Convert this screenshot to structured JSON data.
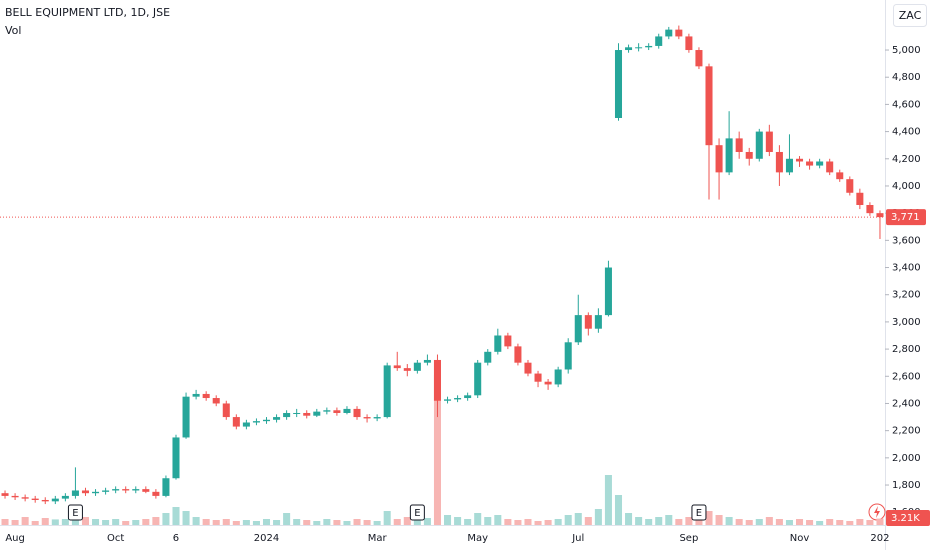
{
  "chart_data": {
    "type": "candlestick",
    "title": "BELL EQUIPMENT LTD, 1D, JSE",
    "volume_label": "Vol",
    "currency": "ZAC",
    "events": [
      "E",
      "E",
      "E"
    ],
    "categories": [
      null,
      "Aug",
      null,
      null,
      null,
      null,
      null,
      null,
      null,
      null,
      null,
      "Oct",
      null,
      null,
      null,
      null,
      null,
      "6",
      null,
      null,
      null,
      null,
      null,
      null,
      null,
      null,
      "2024",
      null,
      null,
      null,
      null,
      null,
      null,
      null,
      null,
      null,
      null,
      "Mar",
      null,
      null,
      null,
      null,
      null,
      null,
      null,
      null,
      null,
      "May",
      null,
      null,
      null,
      null,
      null,
      null,
      null,
      null,
      null,
      "Jul",
      null,
      null,
      null,
      null,
      null,
      null,
      null,
      null,
      null,
      null,
      "Sep",
      null,
      null,
      null,
      null,
      null,
      null,
      null,
      null,
      null,
      null,
      "Nov",
      null,
      null,
      null,
      null,
      null,
      null,
      null,
      "202"
    ],
    "open": [
      1740,
      1720,
      1710,
      1700,
      1690,
      1680,
      1700,
      1720,
      1760,
      1740,
      1750,
      1760,
      1770,
      1760,
      1770,
      1750,
      1720,
      1850,
      2150,
      2450,
      2470,
      2440,
      2400,
      2300,
      2230,
      2260,
      2270,
      2280,
      2300,
      2330,
      2330,
      2310,
      2340,
      2350,
      2330,
      2360,
      2300,
      2290,
      2300,
      2680,
      2660,
      2640,
      2700,
      2720,
      2420,
      2430,
      2440,
      2460,
      2700,
      2780,
      2900,
      2820,
      2700,
      2620,
      2560,
      2540,
      2650,
      2850,
      3050,
      2950,
      3050,
      4500,
      5000,
      5020,
      5020,
      5030,
      5100,
      5150,
      5100,
      5000,
      4880,
      4300,
      4100,
      4350,
      4250,
      4200,
      4400,
      4250,
      4100,
      4200,
      4180,
      4150,
      4180,
      4100,
      4050,
      3950,
      3860,
      3800
    ],
    "high": [
      1760,
      1740,
      1730,
      1720,
      1710,
      1720,
      1740,
      1930,
      1780,
      1770,
      1780,
      1790,
      1790,
      1790,
      1790,
      1770,
      1870,
      2170,
      2480,
      2500,
      2490,
      2460,
      2420,
      2320,
      2280,
      2290,
      2300,
      2320,
      2350,
      2360,
      2350,
      2360,
      2370,
      2370,
      2380,
      2380,
      2320,
      2320,
      2700,
      2780,
      2690,
      2720,
      2760,
      2760,
      2450,
      2460,
      2480,
      2720,
      2800,
      2950,
      2920,
      2840,
      2720,
      2640,
      2580,
      2670,
      2880,
      3200,
      3070,
      3100,
      3450,
      5050,
      5040,
      5050,
      5050,
      5120,
      5170,
      5180,
      5120,
      5020,
      4900,
      4350,
      4550,
      4400,
      4280,
      4420,
      4450,
      4300,
      4380,
      4220,
      4200,
      4200,
      4200,
      4120,
      4070,
      3980,
      3880,
      3820
    ],
    "low": [
      1700,
      1690,
      1680,
      1670,
      1660,
      1660,
      1680,
      1700,
      1720,
      1720,
      1730,
      1740,
      1740,
      1740,
      1740,
      1700,
      1710,
      1840,
      2140,
      2430,
      2420,
      2380,
      2280,
      2210,
      2210,
      2240,
      2250,
      2260,
      2280,
      2300,
      2290,
      2300,
      2320,
      2310,
      2320,
      2280,
      2260,
      2270,
      2290,
      2640,
      2600,
      2620,
      2680,
      2300,
      2400,
      2410,
      2420,
      2440,
      2680,
      2760,
      2800,
      2680,
      2600,
      2520,
      2500,
      2520,
      2620,
      2830,
      2900,
      2920,
      3040,
      4480,
      4980,
      4990,
      5000,
      5010,
      5080,
      5080,
      4980,
      4860,
      3900,
      3900,
      4080,
      4200,
      4150,
      4180,
      4220,
      4000,
      4080,
      4140,
      4120,
      4130,
      4080,
      4030,
      3930,
      3830,
      3780,
      3610
    ],
    "close": [
      1720,
      1710,
      1700,
      1690,
      1680,
      1700,
      1720,
      1760,
      1740,
      1750,
      1760,
      1770,
      1760,
      1770,
      1750,
      1720,
      1850,
      2150,
      2450,
      2470,
      2440,
      2400,
      2300,
      2230,
      2260,
      2270,
      2280,
      2300,
      2330,
      2330,
      2310,
      2340,
      2350,
      2330,
      2360,
      2300,
      2290,
      2300,
      2680,
      2660,
      2640,
      2700,
      2720,
      2420,
      2430,
      2440,
      2460,
      2700,
      2780,
      2900,
      2820,
      2700,
      2620,
      2560,
      2540,
      2650,
      2850,
      3050,
      2950,
      3050,
      3400,
      5000,
      5020,
      5020,
      5030,
      5100,
      5150,
      5100,
      5000,
      4880,
      4300,
      4100,
      4350,
      4250,
      4200,
      4400,
      4250,
      4100,
      4200,
      4180,
      4150,
      4180,
      4100,
      4050,
      3950,
      3860,
      3800,
      3771
    ],
    "last_close_label": "3,771",
    "volume": [
      3000,
      2500,
      4000,
      2000,
      3500,
      2800,
      3000,
      8000,
      4000,
      3000,
      2500,
      3000,
      2000,
      2500,
      3000,
      4000,
      6000,
      9000,
      7000,
      4000,
      3000,
      2500,
      3000,
      2000,
      2500,
      2000,
      3000,
      2500,
      6000,
      3000,
      2500,
      2000,
      3000,
      2500,
      2000,
      3000,
      2500,
      2000,
      7000,
      3000,
      4000,
      3000,
      3500,
      75000,
      5000,
      4000,
      3000,
      6000,
      4000,
      5000,
      3000,
      2500,
      3000,
      2000,
      2500,
      3000,
      5000,
      6000,
      4000,
      8000,
      25000,
      15000,
      6000,
      4000,
      3000,
      4000,
      5000,
      3000,
      4000,
      6000,
      7000,
      5000,
      4000,
      3000,
      2500,
      3000,
      4000,
      3000,
      2500,
      3000,
      2500,
      2000,
      3000,
      2500,
      2000,
      3000,
      2500,
      3210
    ],
    "volume_last_label": "3.21K",
    "volume_ylim": [
      0,
      100000
    ],
    "ylim": [
      1506,
      5368
    ],
    "yticks": [
      {
        "value": 1600,
        "label": "1,600"
      },
      {
        "value": 1800,
        "label": "1,800"
      },
      {
        "value": 2000,
        "label": "2,000"
      },
      {
        "value": 2200,
        "label": "2,200"
      },
      {
        "value": 2400,
        "label": "2,400"
      },
      {
        "value": 2600,
        "label": "2,600"
      },
      {
        "value": 2800,
        "label": "2,800"
      },
      {
        "value": 3000,
        "label": "3,000"
      },
      {
        "value": 3200,
        "label": "3,200"
      },
      {
        "value": 3400,
        "label": "3,400"
      },
      {
        "value": 3600,
        "label": "3,600"
      },
      {
        "value": 3800,
        "label": "3,800"
      },
      {
        "value": 4000,
        "label": "4,000"
      },
      {
        "value": 4200,
        "label": "4,200"
      },
      {
        "value": 4400,
        "label": "4,400"
      },
      {
        "value": 4600,
        "label": "4,600"
      },
      {
        "value": 4800,
        "label": "4,800"
      },
      {
        "value": 5000,
        "label": "5,000"
      }
    ],
    "grid": false,
    "up_color": "#26a69a",
    "down_color": "#ef5350",
    "volume_up_color": "#a8dbd6",
    "volume_down_color": "#f7b5b3"
  }
}
